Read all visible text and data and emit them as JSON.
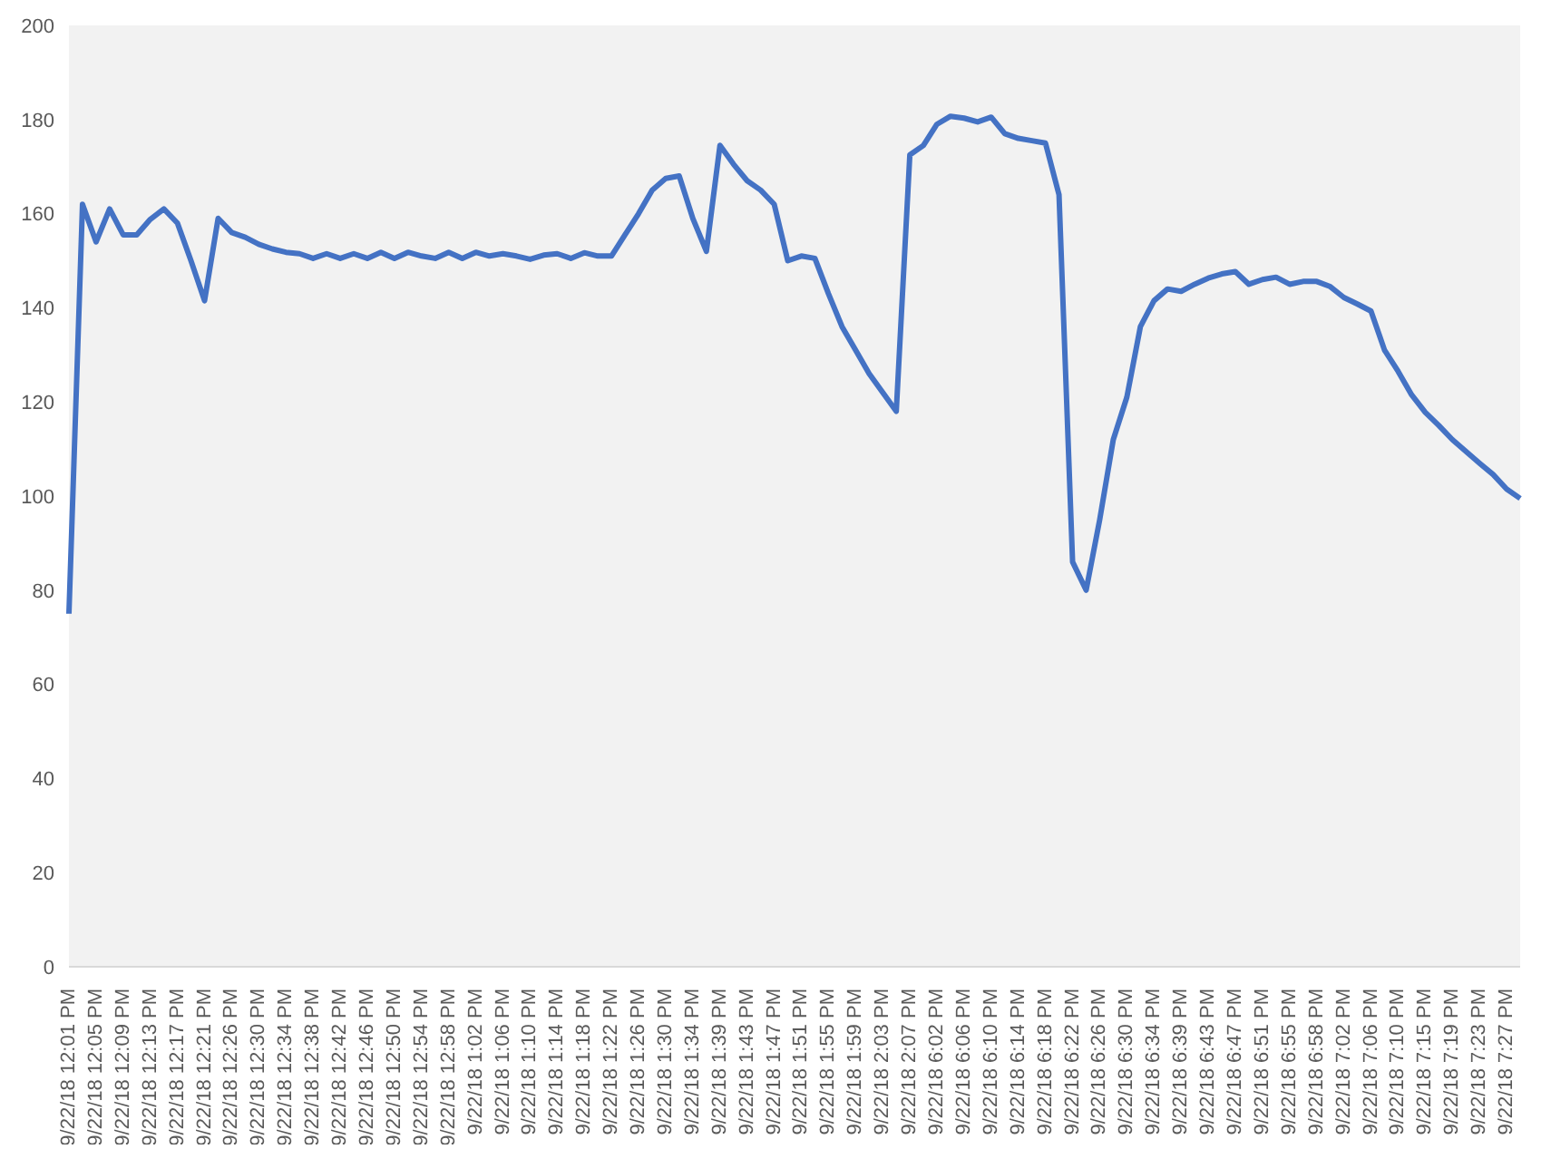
{
  "chart_data": {
    "type": "line",
    "categories": [
      "9/22/18 12:01 PM",
      null,
      "9/22/18 12:05 PM",
      null,
      "9/22/18 12:09 PM",
      null,
      "9/22/18 12:13 PM",
      null,
      "9/22/18 12:17 PM",
      null,
      "9/22/18 12:21 PM",
      null,
      "9/22/18 12:26 PM",
      null,
      "9/22/18 12:30 PM",
      null,
      "9/22/18 12:34 PM",
      null,
      "9/22/18 12:38 PM",
      null,
      "9/22/18 12:42 PM",
      null,
      "9/22/18 12:46 PM",
      null,
      "9/22/18 12:50 PM",
      null,
      "9/22/18 12:54 PM",
      null,
      "9/22/18 12:58 PM",
      null,
      "9/22/18 1:02 PM",
      null,
      "9/22/18 1:06 PM",
      null,
      "9/22/18 1:10 PM",
      null,
      "9/22/18 1:14 PM",
      null,
      "9/22/18 1:18 PM",
      null,
      "9/22/18 1:22 PM",
      null,
      "9/22/18 1:26 PM",
      null,
      "9/22/18 1:30 PM",
      null,
      "9/22/18 1:34 PM",
      null,
      "9/22/18 1:39 PM",
      null,
      "9/22/18 1:43 PM",
      null,
      "9/22/18 1:47 PM",
      null,
      "9/22/18 1:51 PM",
      null,
      "9/22/18 1:55 PM",
      null,
      "9/22/18 1:59 PM",
      null,
      "9/22/18 2:03 PM",
      null,
      "9/22/18 2:07 PM",
      null,
      "9/22/18 6:02 PM",
      null,
      "9/22/18 6:06 PM",
      null,
      "9/22/18 6:10 PM",
      null,
      "9/22/18 6:14 PM",
      null,
      "9/22/18 6:18 PM",
      null,
      "9/22/18 6:22 PM",
      null,
      "9/22/18 6:26 PM",
      null,
      "9/22/18 6:30 PM",
      null,
      "9/22/18 6:34 PM",
      null,
      "9/22/18 6:39 PM",
      null,
      "9/22/18 6:43 PM",
      null,
      "9/22/18 6:47 PM",
      null,
      "9/22/18 6:51 PM",
      null,
      "9/22/18 6:55 PM",
      null,
      "9/22/18 6:58 PM",
      null,
      "9/22/18 7:02 PM",
      null,
      "9/22/18 7:06 PM",
      null,
      "9/22/18 7:10 PM",
      null,
      "9/22/18 7:15 PM",
      null,
      "9/22/18 7:19 PM",
      null,
      "9/22/18 7:23 PM",
      null,
      "9/22/18 7:27 PM",
      null
    ],
    "series": [
      {
        "color": "#4472c4",
        "values": [
          75,
          162,
          154,
          161,
          155.5,
          155.5,
          158.8,
          161,
          158,
          150,
          141.5,
          159,
          156,
          155,
          153.5,
          152.5,
          151.8,
          151.5,
          150.5,
          151.5,
          150.5,
          151.5,
          150.5,
          151.8,
          150.5,
          151.8,
          151,
          150.5,
          151.8,
          150.5,
          151.8,
          151,
          151.5,
          151,
          150.3,
          151.2,
          151.5,
          150.5,
          151.7,
          151,
          151,
          155.5,
          160,
          165,
          167.5,
          168,
          159,
          152,
          174.5,
          170.5,
          167,
          165,
          162,
          150,
          151,
          150.5,
          143,
          136,
          131,
          126,
          122,
          118,
          172.5,
          174.5,
          179,
          180.7,
          180.3,
          179.5,
          180.5,
          177,
          176,
          175.5,
          175,
          164,
          86,
          80,
          95,
          112,
          121,
          136,
          141.5,
          144,
          143.5,
          145,
          146.3,
          147.2,
          147.7,
          145,
          146,
          146.5,
          145,
          145.6,
          145.6,
          144.5,
          142.2,
          140.8,
          139.3,
          131,
          126.5,
          121.5,
          117.8,
          115,
          112,
          109.5,
          107,
          104.6,
          101.5,
          99.5
        ]
      }
    ],
    "ylim": [
      0,
      200
    ],
    "yticks": [
      0,
      20,
      40,
      60,
      80,
      100,
      120,
      140,
      160,
      180,
      200
    ],
    "legend": false
  }
}
